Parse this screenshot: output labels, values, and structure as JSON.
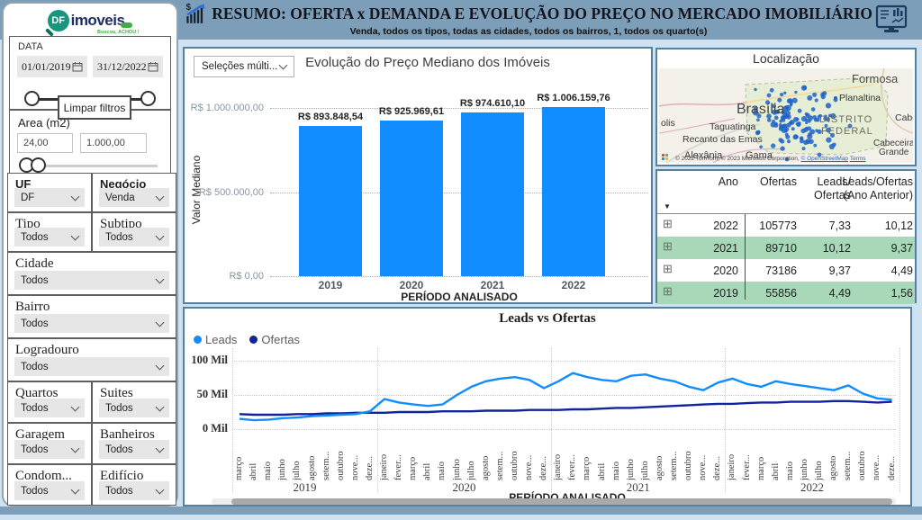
{
  "colors": {
    "accent_blue": "#118DFF",
    "navy": "#12239E",
    "header_bg": "#7C9EB8",
    "table_green": "#A9D8B9"
  },
  "logo": {
    "df": "DF",
    "name": "imoveis",
    "tagline": "Buscou, ACHOU !"
  },
  "header": {
    "title": "RESUMO: OFERTA x DEMANDA E EVOLUÇÃO DO PREÇO NO MERCADO IMOBILIÁRIO",
    "subtitle": "Venda, todos os tipos, todas as cidades, todos os bairros, 1, todos os quarto(s)"
  },
  "sidebar": {
    "date": {
      "label": "DATA",
      "start": "01/01/2019",
      "end": "31/12/2022"
    },
    "clear_button": "Limpar filtros",
    "area": {
      "label": "Area (m2)",
      "min": "24,00",
      "max": "1.000,00"
    },
    "slicer_rows": [
      {
        "cells": [
          {
            "label": "UF",
            "value": "DF"
          },
          {
            "label": "Negócio",
            "value": "Venda"
          }
        ]
      },
      {
        "cells": [
          {
            "label": "Tipo",
            "value": "Todos"
          },
          {
            "label": "Subtipo",
            "value": "Todos"
          }
        ]
      },
      {
        "cells": [
          {
            "label": "Cidade",
            "value": "Todos"
          }
        ]
      },
      {
        "cells": [
          {
            "label": "Bairro",
            "value": "Todos"
          }
        ]
      },
      {
        "cells": [
          {
            "label": "Logradouro",
            "value": "Todos"
          }
        ]
      },
      {
        "cells": [
          {
            "label": "Quartos",
            "value": "Todos"
          },
          {
            "label": "Suites",
            "value": "Todos"
          }
        ]
      },
      {
        "cells": [
          {
            "label": "Garagem",
            "value": "Todos"
          },
          {
            "label": "Banheiros",
            "value": "Todos"
          }
        ]
      },
      {
        "cells": [
          {
            "label": "Condom...",
            "value": "Todos"
          },
          {
            "label": "Edifício",
            "value": "Todos"
          }
        ]
      }
    ]
  },
  "bar_panel": {
    "dropdown": "Seleções múlti..."
  },
  "map": {
    "title": "Localização",
    "labels": [
      "Formosa",
      "Planaltina",
      "Brasília",
      "DISTRITO",
      "FEDERAL",
      "Taguatinga",
      "Recanto das Emas",
      "Alexânia",
      "Gama",
      "Cabeceira",
      "Grande",
      "olis",
      "Cabe"
    ],
    "attribution_pre": "© 2022 TomTom, © 2023 Microsoft Corporation, ",
    "attribution_osm": "© OpenStreetMap",
    "attribution_terms": "Terms"
  },
  "table": {
    "columns": [
      "Ano",
      "Ofertas",
      "Leads/\nOfertas",
      "Leads/Ofertas\n(Ano Anterior)"
    ],
    "rows": [
      {
        "cells": [
          "2022",
          "105773",
          "7,33",
          "10,12"
        ],
        "green": false
      },
      {
        "cells": [
          "2021",
          "89710",
          "10,12",
          "9,37"
        ],
        "green": true
      },
      {
        "cells": [
          "2020",
          "73186",
          "9,37",
          "4,49"
        ],
        "green": false
      },
      {
        "cells": [
          "2019",
          "55856",
          "4,49",
          "1,56"
        ],
        "green": true
      }
    ]
  },
  "chart_data": [
    {
      "type": "bar",
      "title": "Evolução do Preço Mediano dos Imóveis",
      "categories": [
        "2019",
        "2020",
        "2021",
        "2022"
      ],
      "values": [
        893848.54,
        925969.61,
        974610.1,
        1006159.76
      ],
      "value_labels": [
        "R$ 893.848,54",
        "R$ 925.969,61",
        "R$ 974.610,10",
        "R$ 1.006.159,76"
      ],
      "xlabel": "PERÍODO ANALISADO",
      "ylabel": "Valor Mediano",
      "yticks": [
        "R$ 0,00",
        "R$ 500.000,00",
        "R$ 1.000.000,00"
      ],
      "ytick_values": [
        0,
        500000,
        1000000
      ],
      "ylim": [
        0,
        1070000
      ],
      "bar_color": "#118DFF",
      "grid": true,
      "legend_position": "none"
    },
    {
      "type": "line",
      "title": "Leads vs Ofertas",
      "xlabel": "PERÍODO ANALISADO",
      "ylabel": "",
      "yticks": [
        "0 Mil",
        "50 Mil",
        "100 Mil"
      ],
      "ytick_values": [
        0,
        50,
        100
      ],
      "ylim": [
        0,
        110
      ],
      "unit": "Mil",
      "grid": true,
      "legend_position": "top-left",
      "x": [
        "março",
        "abril",
        "maio",
        "junho",
        "julho",
        "agosto",
        "setem...",
        "outubro",
        "nove...",
        "deze...",
        "janeiro",
        "fever...",
        "março",
        "abril",
        "maio",
        "junho",
        "julho",
        "agosto",
        "setem...",
        "outubro",
        "nove...",
        "deze...",
        "janeiro",
        "fever...",
        "março",
        "abril",
        "maio",
        "junho",
        "julho",
        "agosto",
        "setem...",
        "outubro",
        "nove...",
        "deze...",
        "janeiro",
        "fever...",
        "março",
        "abril",
        "maio",
        "junho",
        "julho",
        "agosto",
        "setem...",
        "outubro",
        "nove...",
        "deze..."
      ],
      "year_groups": [
        {
          "year": "2019",
          "months": 10
        },
        {
          "year": "2020",
          "months": 12
        },
        {
          "year": "2021",
          "months": 12
        },
        {
          "year": "2022",
          "months": 12
        }
      ],
      "series": [
        {
          "name": "Leads",
          "color": "#118DFF",
          "values": [
            15,
            13,
            14,
            16,
            17,
            19,
            20,
            21,
            22,
            26,
            44,
            39,
            36,
            34,
            36,
            50,
            62,
            70,
            74,
            76,
            72,
            60,
            70,
            82,
            76,
            72,
            70,
            78,
            80,
            74,
            70,
            62,
            57,
            68,
            74,
            66,
            62,
            70,
            66,
            63,
            60,
            57,
            64,
            52,
            45,
            43
          ]
        },
        {
          "name": "Ofertas",
          "color": "#12239E",
          "values": [
            22,
            21,
            21,
            21,
            22,
            22,
            23,
            23,
            24,
            24,
            24,
            25,
            25,
            25,
            26,
            26,
            26,
            27,
            27,
            27,
            28,
            28,
            28,
            29,
            29,
            30,
            31,
            31,
            32,
            33,
            34,
            35,
            36,
            37,
            37,
            38,
            39,
            39,
            40,
            40,
            40,
            41,
            41,
            40,
            39,
            40
          ]
        }
      ]
    }
  ]
}
